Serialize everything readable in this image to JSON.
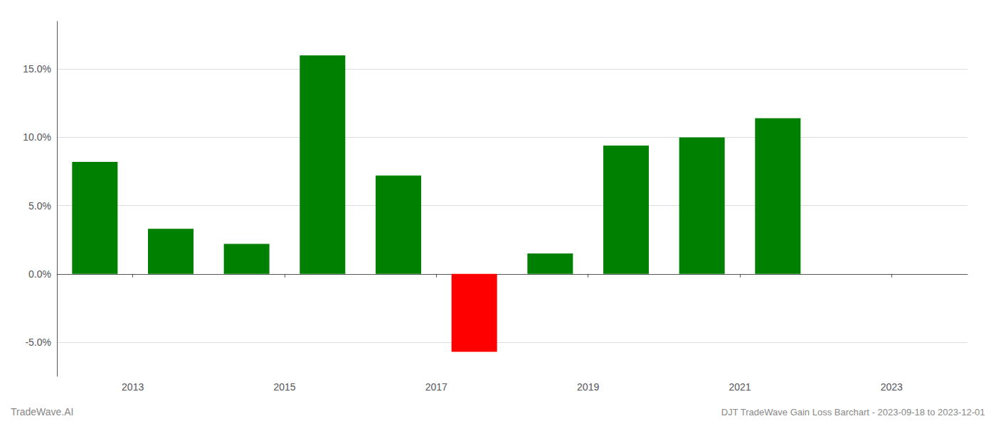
{
  "chart_data": {
    "type": "bar",
    "title": "DJT TradeWave Gain Loss Barchart - 2023-09-18 to 2023-12-01",
    "annotations": [
      "TradeWave.AI"
    ],
    "x": [
      2012.5,
      2013.5,
      2014.5,
      2015.5,
      2016.5,
      2017.5,
      2018.5,
      2019.5,
      2020.5,
      2021.5,
      2022.5
    ],
    "values": [
      0.082,
      0.033,
      0.022,
      0.16,
      0.072,
      -0.057,
      0.015,
      0.094,
      0.1,
      0.114,
      null
    ],
    "colors": [
      "#008000",
      "#008000",
      "#008000",
      "#008000",
      "#008000",
      "#ff0000",
      "#008000",
      "#008000",
      "#008000",
      "#008000",
      null
    ],
    "xlim": [
      2012.0,
      2024.0
    ],
    "xticks": [
      2013,
      2015,
      2017,
      2019,
      2021,
      2023
    ],
    "ylim": [
      -0.075,
      0.185
    ],
    "yticks": [
      {
        "value": -0.05,
        "label": "-5.0%"
      },
      {
        "value": 0.0,
        "label": "0.0%"
      },
      {
        "value": 0.05,
        "label": "5.0%"
      },
      {
        "value": 0.1,
        "label": "10.0%"
      },
      {
        "value": 0.15,
        "label": "15.0%"
      }
    ],
    "grid": true
  }
}
